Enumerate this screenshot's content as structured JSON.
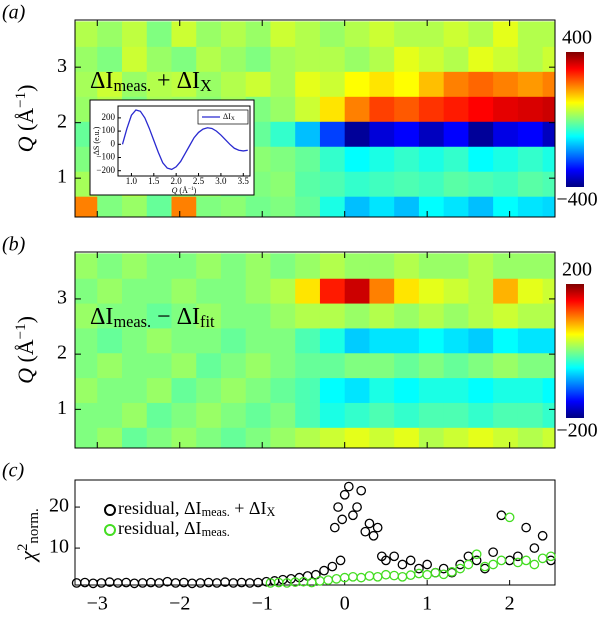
{
  "chart_data": [
    {
      "type": "heatmap",
      "panel_label": "(a)",
      "annotation": [
        "ΔI",
        "meas.",
        " + ΔI",
        "X"
      ],
      "ylabel": [
        "Q",
        " (Å",
        "−1",
        ")"
      ],
      "x": [
        -3.15,
        -2.85,
        -2.55,
        -2.25,
        -1.95,
        -1.65,
        -1.35,
        -1.05,
        -0.75,
        -0.45,
        -0.15,
        0.15,
        0.45,
        0.75,
        1.05,
        1.35,
        1.65,
        1.95,
        2.25,
        2.55
      ],
      "y": [
        0.45,
        0.9,
        1.35,
        1.8,
        2.25,
        2.7,
        3.15,
        3.6
      ],
      "z": [
        [
          200,
          0,
          20,
          -20,
          200,
          0,
          10,
          -10,
          0,
          -20,
          -80,
          -150,
          -120,
          -150,
          -100,
          -120,
          -150,
          -100,
          -120,
          -130
        ],
        [
          30,
          0,
          40,
          -20,
          0,
          20,
          -10,
          0,
          10,
          -30,
          -40,
          -60,
          -50,
          -40,
          -50,
          -30,
          -40,
          -50,
          -30,
          -40
        ],
        [
          0,
          20,
          -10,
          0,
          20,
          0,
          -20,
          10,
          0,
          -20,
          -60,
          -100,
          -80,
          -60,
          -80,
          -60,
          -100,
          -80,
          -60,
          -80
        ],
        [
          -20,
          0,
          20,
          -10,
          0,
          -30,
          0,
          -20,
          -60,
          -150,
          -250,
          -380,
          -330,
          -300,
          -350,
          -300,
          -380,
          -320,
          -300,
          -350
        ],
        [
          20,
          40,
          0,
          30,
          20,
          10,
          30,
          0,
          20,
          60,
          120,
          200,
          250,
          230,
          260,
          280,
          300,
          320,
          330,
          340
        ],
        [
          30,
          60,
          20,
          40,
          50,
          20,
          40,
          60,
          30,
          80,
          60,
          100,
          120,
          100,
          150,
          200,
          220,
          200,
          180,
          200
        ],
        [
          20,
          0,
          60,
          20,
          0,
          40,
          20,
          0,
          30,
          40,
          40,
          20,
          40,
          80,
          60,
          40,
          80,
          60,
          40,
          60
        ],
        [
          40,
          20,
          50,
          0,
          60,
          20,
          40,
          20,
          60,
          40,
          20,
          40,
          60,
          40,
          40,
          60,
          40,
          80,
          40,
          40
        ]
      ],
      "xlim": [
        -3.27,
        2.55
      ],
      "xticks": [
        -3,
        -2,
        -1,
        0,
        1,
        2
      ],
      "ylim": [
        0.3,
        3.85
      ],
      "yticks": [
        1,
        2,
        3
      ],
      "clim": [
        -400,
        400
      ],
      "cticks": [
        {
          "value": -400,
          "label": "−400"
        },
        400
      ],
      "inset": {
        "type": "line",
        "xlabel": [
          "Q",
          " (Å",
          "−1",
          ")"
        ],
        "ylabel": "ΔS (e.u.)",
        "x": [
          0.8,
          0.9,
          1.0,
          1.1,
          1.2,
          1.3,
          1.4,
          1.5,
          1.6,
          1.7,
          1.8,
          1.9,
          2.0,
          2.1,
          2.2,
          2.3,
          2.4,
          2.5,
          2.6,
          2.7,
          2.8,
          2.9,
          3.0,
          3.1,
          3.2,
          3.3,
          3.4,
          3.5,
          3.6
        ],
        "series": [
          {
            "name": [
              "ΔI",
              "X"
            ],
            "color": "#2a2ad0",
            "values": [
              0,
              120,
              220,
              260,
              250,
              200,
              120,
              30,
              -60,
              -140,
              -180,
              -190,
              -170,
              -130,
              -70,
              -10,
              50,
              90,
              115,
              125,
              120,
              100,
              70,
              35,
              0,
              -30,
              -45,
              -50,
              -45
            ]
          }
        ],
        "xlim": [
          0.7,
          3.65
        ],
        "xticks": [
          {
            "value": 1,
            "label": "1.0"
          },
          {
            "value": 1.5,
            "label": "1.5"
          },
          {
            "value": 2,
            "label": "2.0"
          },
          {
            "value": 2.5,
            "label": "2.5"
          },
          {
            "value": 3,
            "label": "3.0"
          },
          {
            "value": 3.5,
            "label": "3.5"
          }
        ],
        "ylim": [
          -240,
          290
        ],
        "yticks": [
          {
            "value": -200,
            "label": "−200"
          },
          {
            "value": -100,
            "label": "−100"
          },
          0,
          100,
          200
        ]
      }
    },
    {
      "type": "heatmap",
      "panel_label": "(b)",
      "annotation": [
        "ΔI",
        "meas.",
        " − ΔI",
        "fit"
      ],
      "ylabel": [
        "Q",
        " (Å",
        "−1",
        ")"
      ],
      "x": [
        -3.15,
        -2.85,
        -2.55,
        -2.25,
        -1.95,
        -1.65,
        -1.35,
        -1.05,
        -0.75,
        -0.45,
        -0.15,
        0.15,
        0.45,
        0.75,
        1.05,
        1.35,
        1.65,
        1.95,
        2.25,
        2.55
      ],
      "y": [
        0.45,
        0.9,
        1.35,
        1.8,
        2.25,
        2.7,
        3.15,
        3.6
      ],
      "z": [
        [
          0,
          10,
          -10,
          0,
          10,
          0,
          -10,
          0,
          10,
          20,
          30,
          40,
          30,
          40,
          20,
          30,
          40,
          30,
          20,
          30
        ],
        [
          0,
          0,
          10,
          -10,
          0,
          10,
          0,
          -10,
          0,
          -20,
          -40,
          -30,
          -20,
          -30,
          -20,
          -20,
          -30,
          -20,
          -20,
          -30
        ],
        [
          10,
          0,
          0,
          10,
          -10,
          0,
          10,
          0,
          -10,
          -20,
          -50,
          -60,
          -40,
          -50,
          -40,
          -40,
          -50,
          -40,
          -40,
          -50
        ],
        [
          0,
          10,
          0,
          0,
          10,
          -10,
          0,
          10,
          0,
          -10,
          -10,
          0,
          0,
          -10,
          0,
          -10,
          0,
          10,
          0,
          0
        ],
        [
          0,
          -10,
          0,
          10,
          0,
          0,
          -10,
          0,
          0,
          -20,
          -40,
          -70,
          -60,
          -60,
          -50,
          -60,
          -70,
          -50,
          -60,
          -60
        ],
        [
          10,
          0,
          0,
          -10,
          0,
          10,
          0,
          0,
          10,
          20,
          20,
          10,
          20,
          10,
          20,
          10,
          20,
          30,
          20,
          20
        ],
        [
          0,
          10,
          0,
          0,
          10,
          0,
          0,
          10,
          20,
          60,
          140,
          170,
          100,
          60,
          40,
          30,
          20,
          80,
          40,
          30
        ],
        [
          10,
          0,
          10,
          0,
          0,
          10,
          0,
          10,
          0,
          10,
          20,
          10,
          10,
          20,
          10,
          10,
          20,
          10,
          10,
          10
        ]
      ],
      "xlim": [
        -3.27,
        2.55
      ],
      "xticks": [
        -3,
        -2,
        -1,
        0,
        1,
        2
      ],
      "ylim": [
        0.3,
        3.85
      ],
      "yticks": [
        1,
        2,
        3
      ],
      "clim": [
        -200,
        200
      ],
      "cticks": [
        {
          "value": -200,
          "label": "−200"
        },
        200
      ]
    },
    {
      "type": "scatter",
      "panel_label": "(c)",
      "ylabel": [
        "χ",
        "2",
        "norm."
      ],
      "series": [
        {
          "name": [
            "residual, ΔI",
            "meas.",
            " + ΔI",
            "X"
          ],
          "color": "#000000",
          "x": [
            -3.25,
            -3.15,
            -3.05,
            -2.95,
            -2.85,
            -2.75,
            -2.65,
            -2.55,
            -2.45,
            -2.35,
            -2.25,
            -2.15,
            -2.05,
            -1.95,
            -1.85,
            -1.75,
            -1.65,
            -1.55,
            -1.45,
            -1.35,
            -1.25,
            -1.15,
            -1.05,
            -0.95,
            -0.85,
            -0.75,
            -0.65,
            -0.55,
            -0.45,
            -0.35,
            -0.25,
            -0.15,
            -0.12,
            -0.08,
            -0.05,
            -0.03,
            0.0,
            0.05,
            0.1,
            0.15,
            0.2,
            0.25,
            0.3,
            0.35,
            0.4,
            0.45,
            0.5,
            0.6,
            0.7,
            0.8,
            0.9,
            1.0,
            1.1,
            1.2,
            1.3,
            1.4,
            1.5,
            1.6,
            1.7,
            1.8,
            1.9,
            2.0,
            2.1,
            2.2,
            2.3,
            2.4,
            2.5
          ],
          "values": [
            1.5,
            1.6,
            1.4,
            1.5,
            1.7,
            1.5,
            1.6,
            1.4,
            1.5,
            1.6,
            1.5,
            1.8,
            1.5,
            1.6,
            1.4,
            1.5,
            1.6,
            1.5,
            1.7,
            1.5,
            1.6,
            1.5,
            1.6,
            1.8,
            2.0,
            2.3,
            2.5,
            2.8,
            3.2,
            3.5,
            4.5,
            5.5,
            15,
            20,
            7,
            17,
            23,
            25,
            18,
            20,
            24,
            14,
            16,
            13,
            15,
            8,
            7,
            8,
            6,
            7,
            5,
            6,
            4,
            5,
            4,
            6,
            8,
            7,
            5,
            9,
            18,
            7,
            8,
            15,
            10,
            13,
            7
          ]
        },
        {
          "name": [
            "residual, ΔI",
            "meas."
          ],
          "color": "#44dd22",
          "x": [
            -0.9,
            -0.8,
            -0.7,
            -0.6,
            -0.5,
            -0.4,
            -0.3,
            -0.2,
            -0.1,
            0.0,
            0.1,
            0.2,
            0.3,
            0.4,
            0.5,
            0.6,
            0.7,
            0.8,
            0.9,
            1.0,
            1.1,
            1.2,
            1.3,
            1.4,
            1.5,
            1.6,
            1.7,
            1.8,
            1.9,
            2.0,
            2.1,
            2.2,
            2.3,
            2.4,
            2.5
          ],
          "values": [
            1.5,
            1.6,
            1.5,
            1.7,
            1.8,
            1.6,
            2.0,
            2.2,
            2.5,
            2.8,
            3.0,
            2.8,
            3.2,
            3.0,
            3.5,
            3.3,
            3.0,
            3.4,
            3.8,
            3.5,
            4.0,
            3.6,
            4.2,
            5.0,
            6.0,
            8.5,
            5.5,
            6.0,
            7.0,
            17.5,
            6.5,
            7.0,
            6.0,
            7.5,
            8.0
          ]
        }
      ],
      "xlim": [
        -3.27,
        2.55
      ],
      "xticks": [
        {
          "value": -3,
          "label": "−3"
        },
        {
          "value": -2,
          "label": "−2"
        },
        {
          "value": -1,
          "label": "−1"
        },
        0,
        1,
        2
      ],
      "ylim": [
        1,
        26.6
      ],
      "yticks": [
        10,
        20
      ]
    }
  ]
}
